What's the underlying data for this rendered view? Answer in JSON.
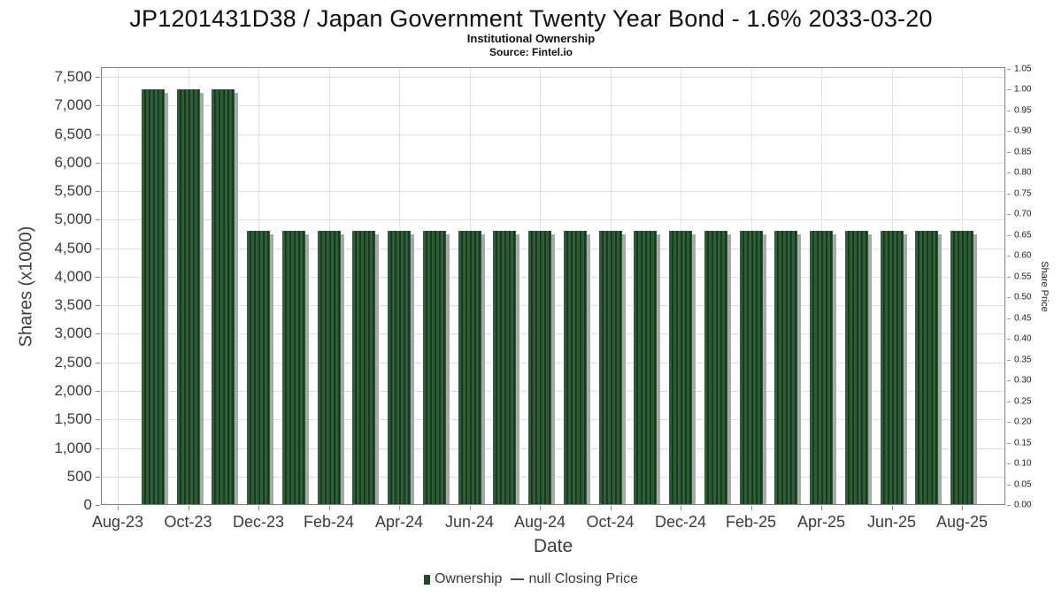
{
  "chart_data": {
    "type": "bar",
    "title": "JP1201431D38 / Japan Government Twenty Year Bond - 1.6% 2033-03-20",
    "subtitle": "Institutional Ownership",
    "source": "Source: Fintel.io",
    "xlabel": "Date",
    "x_tick_labels": [
      "Aug-23",
      "Oct-23",
      "Dec-23",
      "Feb-24",
      "Apr-24",
      "Jun-24",
      "Aug-24",
      "Oct-24",
      "Dec-24",
      "Feb-25",
      "Apr-25",
      "Jun-25",
      "Aug-25"
    ],
    "y_left": {
      "label": "Shares (x1000)",
      "tick_labels": [
        "0",
        "500",
        "1,000",
        "1,500",
        "2,000",
        "2,500",
        "3,000",
        "3,500",
        "4,000",
        "4,500",
        "5,000",
        "5,500",
        "6,000",
        "6,500",
        "7,000",
        "7,500"
      ],
      "axis_max": 7670
    },
    "y_right": {
      "label": "Share Price",
      "tick_labels": [
        "0.00",
        "0.05",
        "0.10",
        "0.15",
        "0.20",
        "0.25",
        "0.30",
        "0.35",
        "0.40",
        "0.45",
        "0.50",
        "0.55",
        "0.60",
        "0.65",
        "0.70",
        "0.75",
        "0.80",
        "0.85",
        "0.90",
        "0.95",
        "1.00",
        "1.05"
      ],
      "axis_max": 1.054
    },
    "series": [
      {
        "name": "Ownership",
        "categories": [
          "Sep-23",
          "Oct-23",
          "Nov-23",
          "Dec-23",
          "Jan-24",
          "Feb-24",
          "Mar-24",
          "Apr-24",
          "May-24",
          "Jun-24",
          "Jul-24",
          "Aug-24",
          "Sep-24",
          "Oct-24",
          "Nov-24",
          "Dec-24",
          "Jan-25",
          "Feb-25",
          "Mar-25",
          "Apr-25",
          "May-25",
          "Jun-25",
          "Jul-25",
          "Aug-25"
        ],
        "values": [
          7280,
          7280,
          7280,
          4800,
          4800,
          4800,
          4800,
          4800,
          4800,
          4800,
          4800,
          4800,
          4800,
          4800,
          4800,
          4800,
          4800,
          4800,
          4800,
          4800,
          4800,
          4800,
          4800,
          4800
        ]
      },
      {
        "name": "null Closing Price",
        "values": []
      }
    ],
    "legend": [
      {
        "label": "Ownership",
        "marker": "square"
      },
      {
        "label": "null Closing Price",
        "marker": "dash"
      }
    ],
    "grid": "on",
    "legend_position": "bottom-center",
    "colors": {
      "bar_stripe_light": "#2e5d36",
      "bar_stripe_dark": "#17391e",
      "bar_shadow": "#a8a8a8",
      "legend_square": "#1d4a28",
      "gridline": "#dedede",
      "axis_border": "#7f7f7f",
      "text": "#3a3a3a"
    }
  }
}
